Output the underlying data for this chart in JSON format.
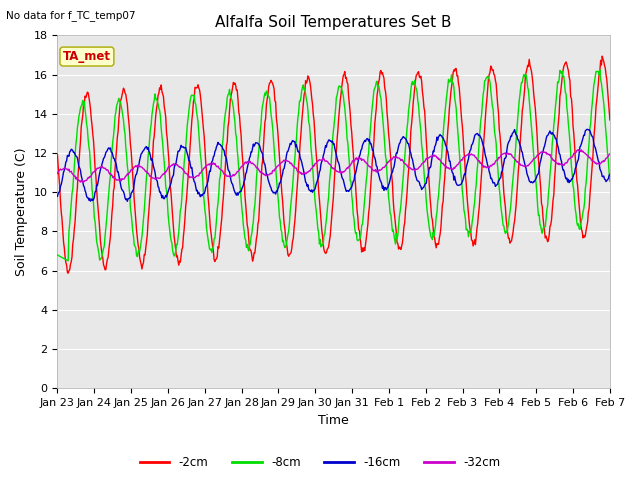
{
  "title": "Alfalfa Soil Temperatures Set B",
  "xlabel": "Time",
  "ylabel": "Soil Temperature (C)",
  "top_left_text": "No data for f_TC_temp07",
  "ta_met_label": "TA_met",
  "ylim": [
    0,
    18
  ],
  "yticks": [
    0,
    2,
    4,
    6,
    8,
    10,
    12,
    14,
    16,
    18
  ],
  "legend_labels": [
    "-2cm",
    "-8cm",
    "-16cm",
    "-32cm"
  ],
  "legend_colors": [
    "#ff0000",
    "#00dd00",
    "#0000cc",
    "#cc00cc"
  ],
  "line_colors": [
    "#ff0000",
    "#00dd00",
    "#0000cc",
    "#cc00cc"
  ],
  "background_color": "#ffffff",
  "plot_bg_color": "#e8e8e8",
  "grid_color": "#ffffff",
  "title_fontsize": 11,
  "axis_fontsize": 9,
  "tick_fontsize": 8,
  "num_points": 720,
  "x_start": 0,
  "x_end": 15,
  "xtick_labels": [
    "Jan 23",
    "Jan 24",
    "Jan 25",
    "Jan 26",
    "Jan 27",
    "Jan 28",
    "Jan 29",
    "Jan 30",
    "Jan 31",
    "Feb 1",
    "Feb 2",
    "Feb 3",
    "Feb 4",
    "Feb 5",
    "Feb 6",
    "Feb 7"
  ],
  "xtick_positions": [
    0,
    1,
    2,
    3,
    4,
    5,
    6,
    7,
    8,
    9,
    10,
    11,
    12,
    13,
    14,
    15
  ]
}
